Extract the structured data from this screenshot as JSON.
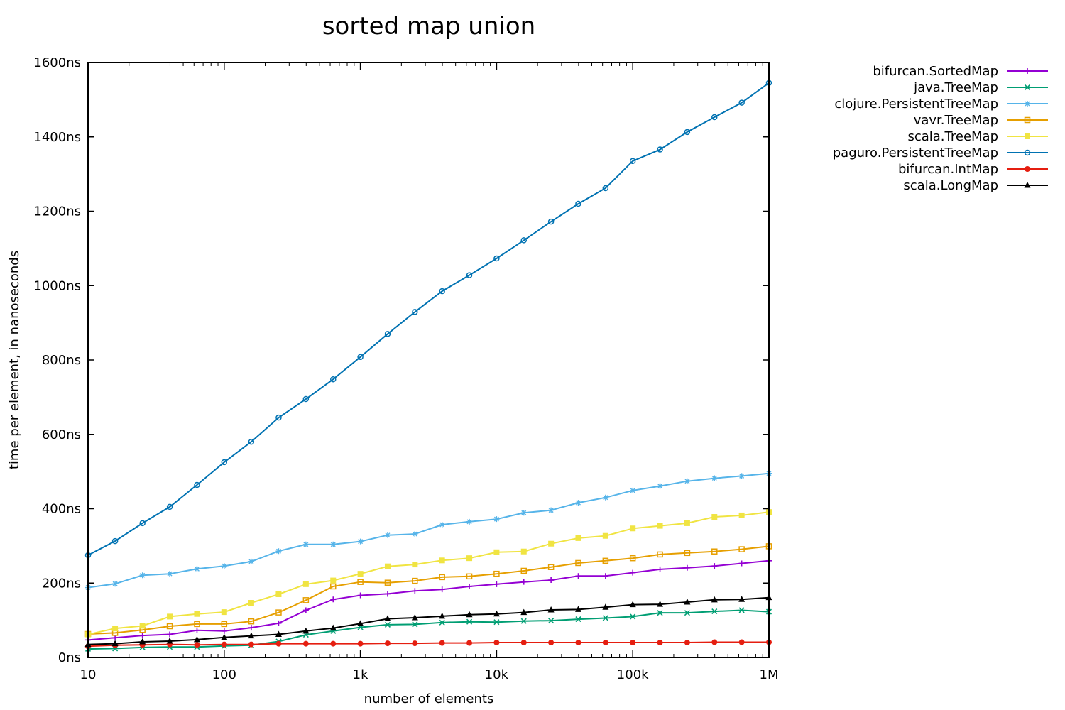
{
  "chart_data": {
    "type": "line",
    "title": "sorted map union",
    "xlabel": "number of elements",
    "ylabel": "time per element, in nanoseconds",
    "x_scale": "log",
    "xlim": [
      10,
      1000000
    ],
    "ylim": [
      0,
      1600
    ],
    "x_ticks": [
      {
        "value": 10,
        "label": "10"
      },
      {
        "value": 100,
        "label": "100"
      },
      {
        "value": 1000,
        "label": "1k"
      },
      {
        "value": 10000,
        "label": "10k"
      },
      {
        "value": 100000,
        "label": "100k"
      },
      {
        "value": 1000000,
        "label": "1M"
      }
    ],
    "y_ticks": [
      {
        "value": 0,
        "label": "0ns"
      },
      {
        "value": 200,
        "label": "200ns"
      },
      {
        "value": 400,
        "label": "400ns"
      },
      {
        "value": 600,
        "label": "600ns"
      },
      {
        "value": 800,
        "label": "800ns"
      },
      {
        "value": 1000,
        "label": "1000ns"
      },
      {
        "value": 1200,
        "label": "1200ns"
      },
      {
        "value": 1400,
        "label": "1400ns"
      },
      {
        "value": 1600,
        "label": "1600ns"
      }
    ],
    "grid": false,
    "legend_position": "top-right, outside plot",
    "x": [
      10,
      15.8,
      25.1,
      39.8,
      63.1,
      100,
      158,
      251,
      398,
      631,
      1000,
      1585,
      2512,
      3981,
      6310,
      10000,
      15849,
      25119,
      39811,
      63096,
      100000,
      158489,
      251189,
      398107,
      630957,
      1000000
    ],
    "series": [
      {
        "name": "bifurcan.SortedMap",
        "color": "#9400d3",
        "marker": "plus",
        "values": [
          47,
          53,
          59,
          62,
          73,
          71,
          80,
          92,
          127,
          156,
          167,
          171,
          179,
          183,
          191,
          197,
          203,
          208,
          219,
          219,
          228,
          237,
          241,
          246,
          253,
          260
        ]
      },
      {
        "name": "java.TreeMap",
        "color": "#009e73",
        "marker": "cross",
        "values": [
          23,
          24,
          27,
          28,
          28,
          31,
          33,
          43,
          61,
          71,
          81,
          88,
          89,
          94,
          96,
          95,
          98,
          99,
          103,
          106,
          110,
          120,
          120,
          124,
          127,
          123
        ]
      },
      {
        "name": "clojure.PersistentTreeMap",
        "color": "#56b4e9",
        "marker": "star",
        "values": [
          188,
          198,
          221,
          225,
          238,
          246,
          258,
          286,
          304,
          304,
          312,
          329,
          332,
          357,
          365,
          372,
          389,
          396,
          416,
          430,
          449,
          461,
          474,
          482,
          488,
          495
        ]
      },
      {
        "name": "vavr.TreeMap",
        "color": "#e69f00",
        "marker": "open-square",
        "values": [
          63,
          66,
          74,
          84,
          90,
          90,
          97,
          121,
          154,
          191,
          203,
          201,
          206,
          216,
          218,
          225,
          233,
          243,
          254,
          260,
          267,
          277,
          281,
          285,
          291,
          299
        ]
      },
      {
        "name": "scala.TreeMap",
        "color": "#f0e442",
        "marker": "filled-square",
        "values": [
          62,
          78,
          85,
          110,
          117,
          122,
          147,
          170,
          197,
          207,
          225,
          245,
          250,
          261,
          267,
          283,
          285,
          306,
          321,
          327,
          347,
          354,
          361,
          378,
          382,
          391
        ]
      },
      {
        "name": "paguro.PersistentTreeMap",
        "color": "#0072b2",
        "marker": "open-circle",
        "values": [
          275,
          313,
          361,
          405,
          464,
          525,
          580,
          645,
          695,
          748,
          808,
          870,
          929,
          985,
          1028,
          1073,
          1122,
          1172,
          1220,
          1262,
          1335,
          1366,
          1413,
          1453,
          1492,
          1545
        ]
      },
      {
        "name": "bifurcan.IntMap",
        "color": "#e51e10",
        "marker": "filled-circle",
        "values": [
          30,
          33,
          34,
          35,
          34,
          35,
          35,
          37,
          37,
          37,
          37,
          38,
          38,
          39,
          39,
          40,
          40,
          40,
          40,
          40,
          40,
          40,
          40,
          41,
          41,
          41
        ]
      },
      {
        "name": "scala.LongMap",
        "color": "#000000",
        "marker": "filled-triangle",
        "values": [
          35,
          37,
          42,
          44,
          48,
          54,
          58,
          62,
          71,
          79,
          91,
          104,
          107,
          111,
          115,
          117,
          121,
          128,
          129,
          135,
          142,
          143,
          149,
          155,
          156,
          161
        ]
      }
    ]
  }
}
